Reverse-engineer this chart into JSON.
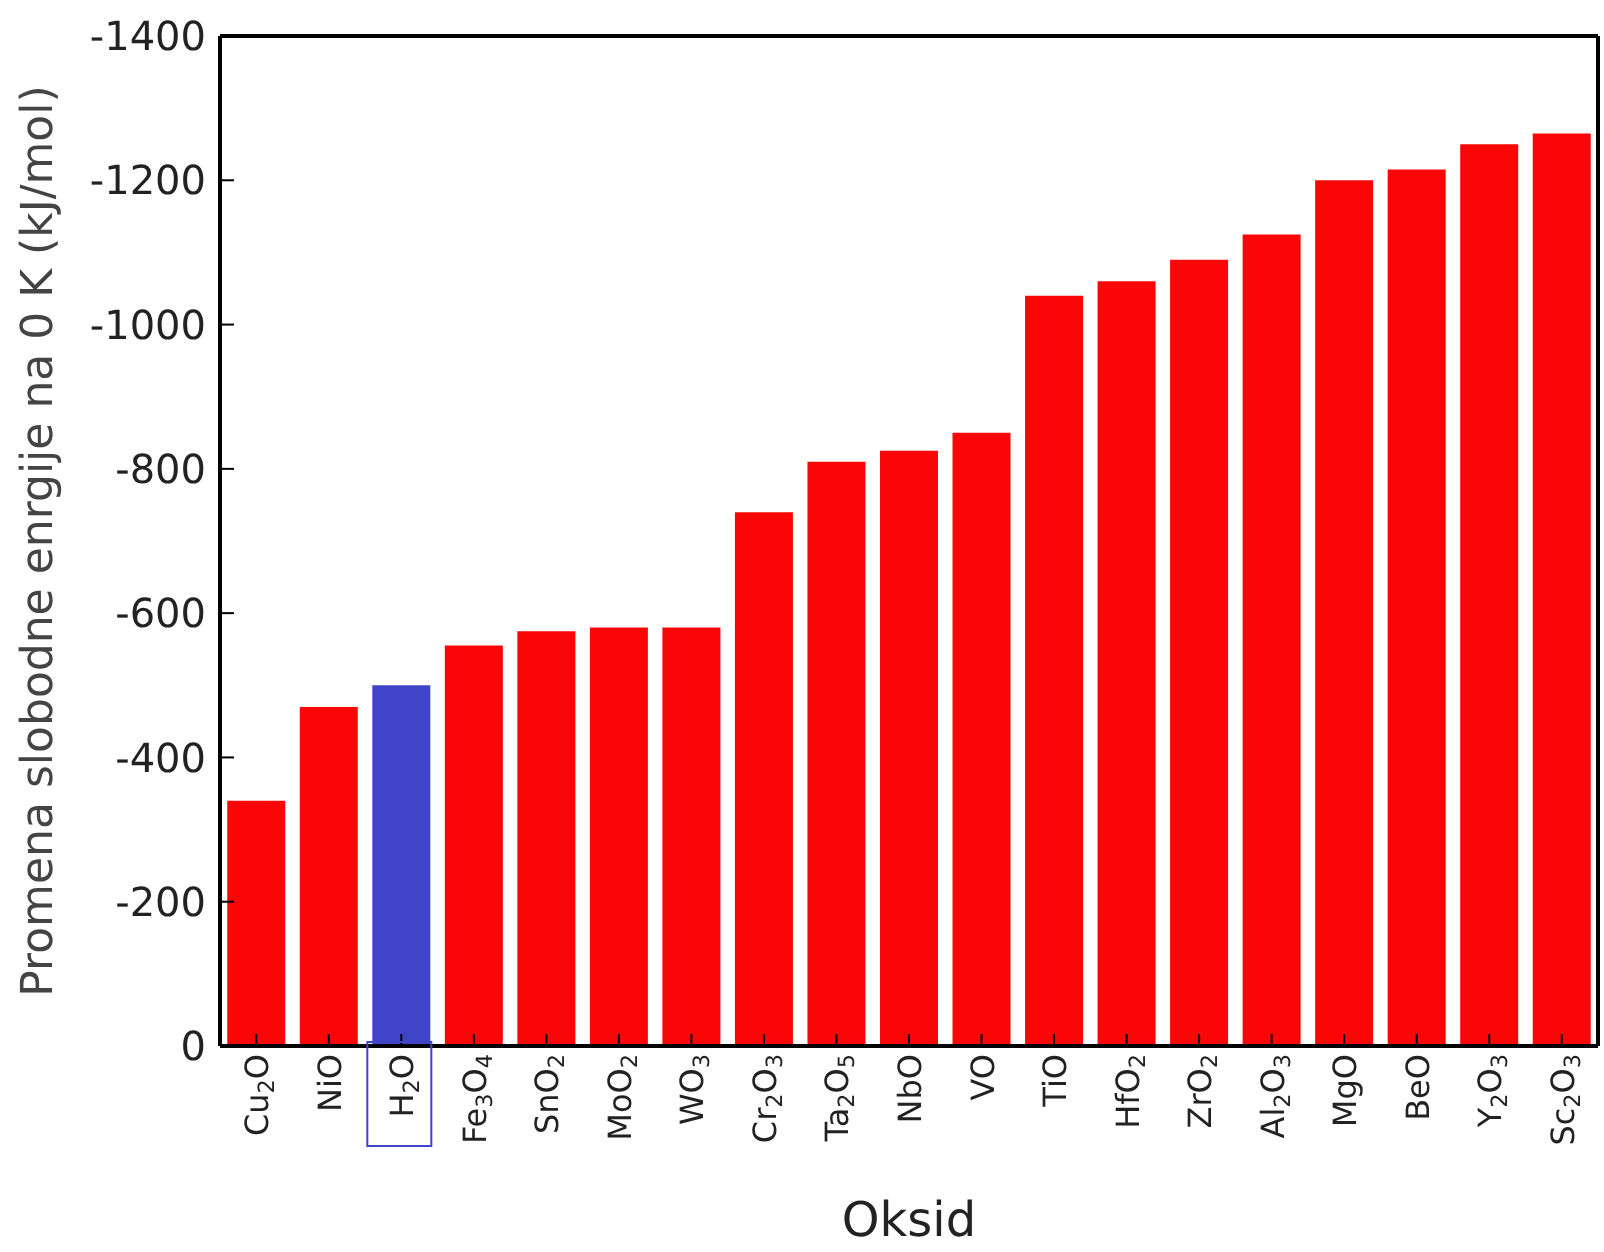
{
  "chart_data": {
    "type": "bar",
    "xlabel": "Oksid",
    "ylabel": "Promena slobodne enrgije na 0 K (kJ/mol)",
    "categories": [
      "Cu$_{2}$O",
      "NiO",
      "H$_{2}$O",
      "Fe$_{3}$O$_{4}$",
      "SnO$_{2}$",
      "MoO$_{2}$",
      "WO$_{3}$",
      "Cr$_{2}$O$_{3}$",
      "Ta$_{2}$O$_{5}$",
      "NbO",
      "VO",
      "TiO",
      "HfO$_{2}$",
      "ZrO$_{2}$",
      "Al$_{2}$O$_{3}$",
      "MgO",
      "BeO",
      "Y$_{2}$O$_{3}$",
      "Sc$_{2}$O$_{3}$"
    ],
    "values": [
      -340,
      -470,
      -500,
      -555,
      -575,
      -580,
      -580,
      -740,
      -810,
      -825,
      -850,
      -1040,
      -1060,
      -1090,
      -1125,
      -1200,
      -1215,
      -1250,
      -1265
    ],
    "colors": [
      "#fb0606",
      "#fb0606",
      "#4045c8",
      "#fb0606",
      "#fb0606",
      "#fb0606",
      "#fb0606",
      "#fb0606",
      "#fb0606",
      "#fb0606",
      "#fb0606",
      "#fb0606",
      "#fb0606",
      "#fb0606",
      "#fb0606",
      "#fb0606",
      "#fb0606",
      "#fb0606",
      "#fb0606"
    ],
    "ylim": [
      0,
      -1400
    ],
    "yticks": [
      0,
      -200,
      -400,
      -600,
      -800,
      -1000,
      -1200,
      -1400
    ],
    "grid": false,
    "legend": false
  }
}
